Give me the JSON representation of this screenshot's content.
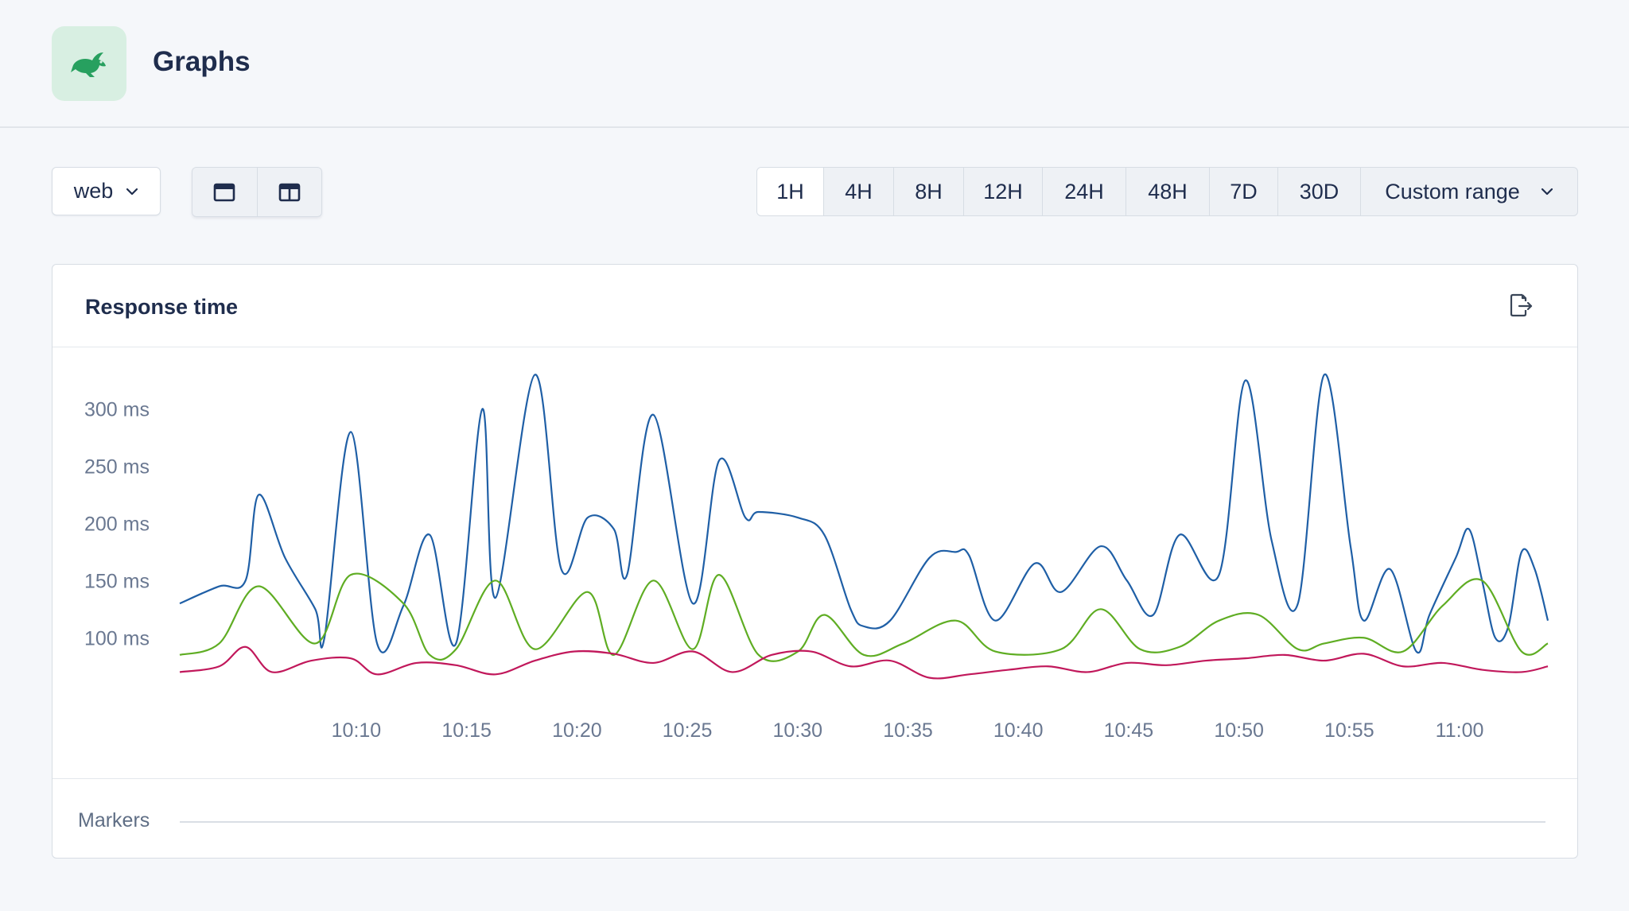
{
  "header": {
    "title": "Graphs",
    "logo_icon": "rabbit-icon"
  },
  "toolbar": {
    "namespace_select": {
      "value": "web"
    },
    "layout_buttons": [
      "single-column-layout-icon",
      "two-column-layout-icon"
    ],
    "ranges": [
      {
        "label": "1H",
        "selected": true
      },
      {
        "label": "4H"
      },
      {
        "label": "8H"
      },
      {
        "label": "12H"
      },
      {
        "label": "24H"
      },
      {
        "label": "48H"
      },
      {
        "label": "7D"
      },
      {
        "label": "30D"
      }
    ],
    "custom_range_label": "Custom range"
  },
  "card": {
    "title": "Response time",
    "export_icon": "export-icon",
    "markers_label": "Markers"
  },
  "chart_data": {
    "type": "line",
    "x_ticks": [
      "10:10",
      "10:15",
      "10:20",
      "10:25",
      "10:30",
      "10:35",
      "10:40",
      "10:45",
      "10:50",
      "10:55",
      "11:00"
    ],
    "y_ticks": [
      "100 ms",
      "150 ms",
      "200 ms",
      "250 ms",
      "300 ms"
    ],
    "y_tick_values": [
      100,
      150,
      200,
      250,
      300
    ],
    "xlim": [
      10.03,
      11.07
    ],
    "ylim": [
      55,
      340
    ],
    "grid": false,
    "series": [
      {
        "color": "#1f5fa6",
        "x": [
          10.03,
          10.06,
          10.09,
          10.133,
          10.16,
          10.2,
          10.22,
          10.24,
          10.27,
          10.3,
          10.34,
          10.36,
          10.39,
          10.42,
          10.44,
          10.47,
          10.5,
          10.52,
          10.54,
          10.57,
          10.6,
          10.63,
          10.65,
          10.7,
          10.73,
          10.77,
          10.79,
          10.82,
          10.84,
          10.88,
          10.9,
          10.93,
          10.95,
          10.98,
          11.01,
          11.03,
          11.05,
          11.07,
          10.08,
          10.11,
          10.14,
          10.18,
          10.26,
          10.32,
          10.37,
          10.46,
          10.55,
          10.62,
          10.68,
          10.75,
          10.86,
          10.92,
          10.97,
          11.0,
          11.02,
          11.04,
          11.06
        ],
        "y": [
          130,
          145,
          225,
          125,
          280,
          128,
          190,
          95,
          135,
          330,
          205,
          195,
          295,
          130,
          255,
          210,
          205,
          190,
          125,
          115,
          170,
          172,
          115,
          140,
          180,
          120,
          190,
          155,
          325,
          130,
          330,
          115,
          160,
          120,
          195,
          100,
          175,
          115,
          150,
          170,
          100,
          95,
          300,
          160,
          155,
          205,
          110,
          175,
          165,
          150,
          185,
          180,
          88,
          170,
          150,
          110,
          160
        ]
      },
      {
        "color": "#5fad23",
        "x": [
          10.03,
          10.06,
          10.09,
          10.133,
          10.16,
          10.2,
          10.22,
          10.24,
          10.27,
          10.3,
          10.34,
          10.36,
          10.39,
          10.42,
          10.44,
          10.47,
          10.5,
          10.52,
          10.55,
          10.58,
          10.62,
          10.65,
          10.7,
          10.73,
          10.76,
          10.79,
          10.82,
          10.85,
          10.88,
          10.9,
          10.93,
          10.96,
          10.99,
          11.02,
          11.05,
          11.07
        ],
        "y": [
          85,
          95,
          145,
          95,
          155,
          130,
          85,
          90,
          150,
          90,
          140,
          85,
          150,
          90,
          155,
          85,
          88,
          120,
          85,
          95,
          115,
          88,
          90,
          125,
          90,
          92,
          115,
          120,
          90,
          95,
          100,
          88,
          128,
          150,
          88,
          95
        ]
      },
      {
        "color": "#c1185b",
        "x": [
          10.03,
          10.06,
          10.08,
          10.1,
          10.13,
          10.16,
          10.18,
          10.21,
          10.24,
          10.27,
          10.3,
          10.33,
          10.36,
          10.39,
          10.42,
          10.45,
          10.48,
          10.51,
          10.54,
          10.57,
          10.6,
          10.63,
          10.66,
          10.69,
          10.72,
          10.75,
          10.78,
          10.81,
          10.84,
          10.87,
          10.9,
          10.93,
          10.96,
          10.99,
          11.02,
          11.05,
          11.07
        ],
        "y": [
          70,
          75,
          92,
          70,
          80,
          82,
          68,
          78,
          76,
          68,
          80,
          88,
          86,
          78,
          88,
          70,
          85,
          88,
          75,
          80,
          65,
          68,
          72,
          75,
          70,
          78,
          76,
          80,
          82,
          85,
          80,
          86,
          75,
          78,
          72,
          70,
          75
        ]
      }
    ]
  }
}
